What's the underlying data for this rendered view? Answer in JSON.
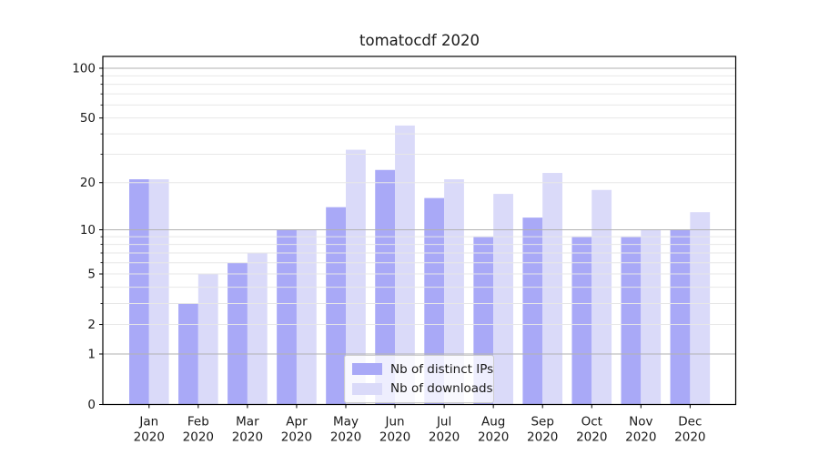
{
  "chart_data": {
    "type": "bar",
    "title": "tomatocdf 2020",
    "categories": [
      "Jan",
      "Feb",
      "Mar",
      "Apr",
      "May",
      "Jun",
      "Jul",
      "Aug",
      "Sep",
      "Oct",
      "Nov",
      "Dec"
    ],
    "category_year": "2020",
    "series": [
      {
        "name": "Nb of distinct IPs",
        "color": "#a9a9f7",
        "values": [
          21,
          3,
          6,
          10,
          14,
          24,
          16,
          9,
          12,
          9,
          9,
          10
        ]
      },
      {
        "name": "Nb of downloads",
        "color": "#dadaf9",
        "values": [
          21,
          5,
          7,
          10,
          32,
          45,
          21,
          17,
          23,
          18,
          10,
          13
        ]
      }
    ],
    "yscale": "log1p",
    "ylim": [
      0,
      118
    ],
    "ytick_labels": [
      "100",
      "50",
      "20",
      "10",
      "5",
      "2",
      "1",
      "0"
    ],
    "ytick_values": [
      100,
      50,
      20,
      10,
      5,
      2,
      1,
      0
    ],
    "grid_major_values": [
      1,
      10,
      100
    ],
    "grid_minor_values": [
      2,
      3,
      4,
      5,
      6,
      7,
      8,
      9,
      20,
      30,
      40,
      50,
      60,
      70,
      80,
      90
    ],
    "grid": true,
    "legend_position": "lower center",
    "xlabel": "",
    "ylabel": ""
  },
  "colors": {
    "spine": "#000000",
    "tick": "#000000",
    "text": "#1a1a1a",
    "grid_major": "#b2b2b2",
    "grid_minor": "#e7e7e7",
    "legend_border": "#cccccc",
    "legend_background": "rgba(255,255,255,0.8)"
  }
}
